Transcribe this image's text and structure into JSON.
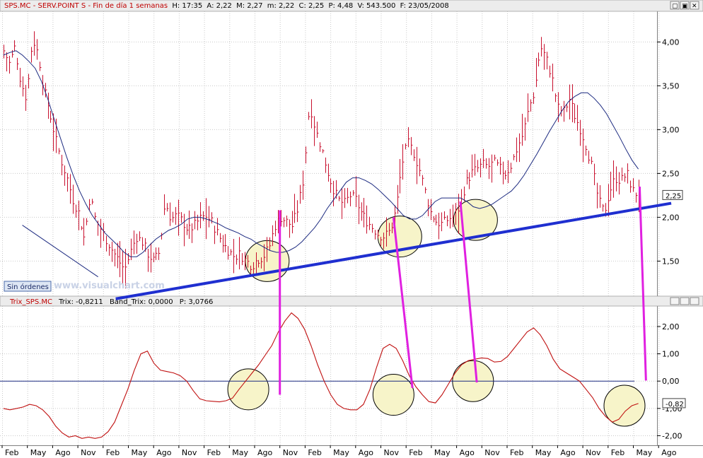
{
  "upper_header": {
    "symbol": "SPS.MC",
    "name": "SERV.POINT S",
    "period": "Fin de día 1 semanas",
    "h_label": "H: 17:35",
    "a_label": "A: 2,22",
    "m_label": "M: 2,27",
    "mm_label": "m: 2,22",
    "c_label": "C: 2,25",
    "p_label": "P: 4,48",
    "v_label": "V: 543.500",
    "f_label": "F: 23/05/2008"
  },
  "lower_header": {
    "indicator": "Trix_SPS.MC",
    "trix_label": "Trix: -0,8211",
    "band_label": "Band_Trix: 0,0000",
    "p_label": "P: 3,0766"
  },
  "sin_ordenes": "Sin órdenes",
  "watermark": "www.visualchart.com",
  "window_controls": [
    "▢",
    "▣",
    "✕"
  ],
  "colors": {
    "price_bars": "#c8102e",
    "moving_average": "#1c2a80",
    "trend_line": "#1f2fd0",
    "annotation": "#e020e0",
    "circle_fill": "#f7f4c9",
    "trix_line": "#c01010",
    "zero_line": "#1c2a80",
    "grid": "#c9c9c9"
  },
  "chart_data": [
    {
      "type": "ohlc",
      "ylim": [
        1.1,
        4.35
      ],
      "yticks": [
        "4,00",
        "3,50",
        "3,00",
        "2,50",
        "2,00",
        "1,50"
      ],
      "ytick_values": [
        4.0,
        3.5,
        3.0,
        2.5,
        2.0,
        1.5
      ],
      "last_value_label": "2,25",
      "last_value": 2.25,
      "x_months": [
        "Feb",
        "May",
        "Ago",
        "Nov",
        "Feb",
        "May",
        "Ago",
        "Nov",
        "Feb",
        "May",
        "Ago",
        "Nov",
        "Feb",
        "May",
        "Ago",
        "Nov",
        "Feb",
        "May",
        "Ago",
        "Nov",
        "Feb",
        "May",
        "Ago",
        "Nov",
        "Feb",
        "May",
        "Ago"
      ],
      "close_series": [
        3.9,
        3.75,
        3.95,
        3.55,
        3.35,
        4.05,
        3.85,
        3.45,
        3.2,
        2.9,
        2.65,
        2.45,
        2.2,
        2.05,
        1.75,
        2.25,
        1.95,
        1.85,
        1.72,
        1.6,
        1.5,
        1.4,
        1.6,
        1.78,
        1.72,
        1.58,
        1.5,
        1.6,
        2.18,
        1.98,
        2.02,
        1.95,
        1.85,
        1.9,
        1.98,
        2.02,
        1.95,
        1.82,
        1.7,
        1.62,
        1.55,
        1.58,
        1.5,
        1.45,
        1.52,
        1.55,
        1.65,
        1.9,
        2.0,
        1.95,
        1.9,
        2.1,
        2.45,
        3.3,
        3.0,
        2.8,
        2.55,
        2.35,
        2.2,
        2.15,
        2.25,
        2.2,
        2.05,
        1.95,
        1.88,
        1.8,
        1.78,
        1.85,
        2.1,
        2.6,
        2.85,
        2.75,
        2.55,
        2.3,
        2.05,
        1.95,
        1.92,
        1.98,
        2.02,
        2.12,
        2.38,
        2.5,
        2.55,
        2.6,
        2.58,
        2.62,
        2.55,
        2.5,
        2.6,
        2.8,
        2.95,
        3.25,
        3.45,
        3.95,
        3.82,
        3.6,
        3.25,
        3.2,
        3.35,
        3.15,
        3.0,
        2.8,
        2.55,
        2.2,
        2.05,
        2.3,
        2.45,
        2.42,
        2.5,
        2.3,
        2.25
      ],
      "moving_average": [
        3.85,
        3.88,
        3.9,
        3.85,
        3.78,
        3.7,
        3.55,
        3.35,
        3.12,
        2.9,
        2.68,
        2.48,
        2.3,
        2.15,
        2.02,
        1.92,
        1.82,
        1.75,
        1.68,
        1.6,
        1.55,
        1.55,
        1.6,
        1.68,
        1.75,
        1.8,
        1.85,
        1.88,
        1.92,
        1.98,
        2.0,
        2.0,
        1.98,
        1.95,
        1.92,
        1.88,
        1.85,
        1.82,
        1.78,
        1.75,
        1.7,
        1.66,
        1.62,
        1.6,
        1.6,
        1.62,
        1.66,
        1.72,
        1.8,
        1.88,
        1.98,
        2.1,
        2.2,
        2.3,
        2.4,
        2.45,
        2.45,
        2.42,
        2.38,
        2.32,
        2.25,
        2.18,
        2.1,
        2.02,
        1.98,
        1.98,
        2.02,
        2.1,
        2.18,
        2.22,
        2.22,
        2.22,
        2.22,
        2.18,
        2.12,
        2.1,
        2.12,
        2.15,
        2.2,
        2.25,
        2.3,
        2.38,
        2.48,
        2.6,
        2.72,
        2.85,
        2.98,
        3.1,
        3.22,
        3.32,
        3.38,
        3.42,
        3.42,
        3.36,
        3.28,
        3.18,
        3.05,
        2.92,
        2.78,
        2.65,
        2.55
      ],
      "trend_lines": [
        {
          "from": [
            9.0,
            1.07
          ],
          "to": [
            53.0,
            2.16
          ]
        },
        {
          "from": [
            1.6,
            1.91
          ],
          "to": [
            7.6,
            1.32
          ]
        }
      ],
      "circles": [
        {
          "cx": 21.0,
          "cy": 1.5
        },
        {
          "cx": 31.5,
          "cy": 1.78
        },
        {
          "cx": 37.5,
          "cy": 1.97
        }
      ]
    },
    {
      "type": "line",
      "name": "Trix",
      "ylim": [
        -2.35,
        2.75
      ],
      "yticks": [
        "2,00",
        "1,00",
        "0,00",
        "-1,00",
        "-2,00"
      ],
      "ytick_values": [
        2.0,
        1.0,
        0.0,
        -1.0,
        -2.0
      ],
      "zero_line": 0.0,
      "last_value_label": "-0,82",
      "last_value": -0.82,
      "values": [
        -1.0,
        -1.05,
        -1.0,
        -0.95,
        -0.85,
        -0.9,
        -1.05,
        -1.3,
        -1.65,
        -1.9,
        -2.05,
        -2.0,
        -2.1,
        -2.05,
        -2.1,
        -2.05,
        -1.85,
        -1.5,
        -0.9,
        -0.3,
        0.4,
        1.0,
        1.1,
        0.65,
        0.4,
        0.35,
        0.3,
        0.2,
        0.0,
        -0.35,
        -0.65,
        -0.72,
        -0.74,
        -0.76,
        -0.72,
        -0.62,
        -0.3,
        0.0,
        0.3,
        0.6,
        0.95,
        1.3,
        1.8,
        2.2,
        2.5,
        2.3,
        1.9,
        1.3,
        0.6,
        0.0,
        -0.5,
        -0.85,
        -1.0,
        -1.05,
        -1.05,
        -0.85,
        -0.3,
        0.5,
        1.2,
        1.35,
        1.2,
        0.75,
        0.2,
        -0.2,
        -0.5,
        -0.75,
        -0.8,
        -0.5,
        -0.1,
        0.3,
        0.6,
        0.75,
        0.8,
        0.85,
        0.83,
        0.7,
        0.72,
        0.9,
        1.2,
        1.5,
        1.8,
        1.95,
        1.7,
        1.3,
        0.8,
        0.45,
        0.3,
        0.15,
        0.0,
        -0.3,
        -0.6,
        -1.0,
        -1.3,
        -1.5,
        -1.4,
        -1.1,
        -0.9,
        -0.82
      ],
      "circles": [
        {
          "cx": 19.5,
          "cy": -0.3
        },
        {
          "cx": 31.0,
          "cy": -0.5
        },
        {
          "cx": 37.3,
          "cy": 0.0
        },
        {
          "cx": 49.3,
          "cy": -0.9
        }
      ]
    }
  ],
  "pink_lines": [
    {
      "x1": 22.0,
      "y1": 2.08,
      "x2": 22.0,
      "y2": -0.5
    },
    {
      "x1": 31.0,
      "y1": 2.0,
      "x2": 32.5,
      "y2": -0.25
    },
    {
      "x1": 36.3,
      "y1": 2.18,
      "x2": 37.6,
      "y2": -0.05
    },
    {
      "x1": 50.5,
      "y1": 2.35,
      "x2": 51.0,
      "y2": 0.02
    }
  ]
}
